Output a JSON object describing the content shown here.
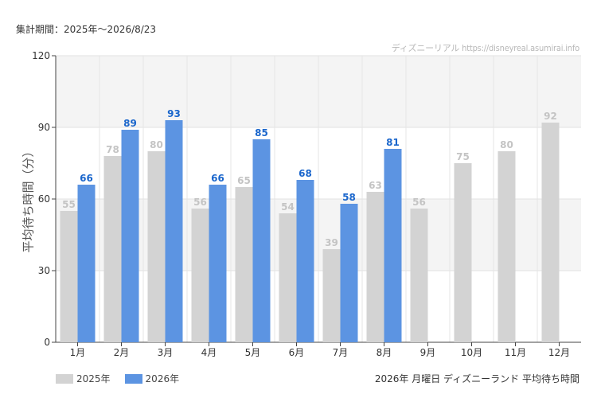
{
  "header": {
    "period": "集計期間：2025年～2026/8/23",
    "credit": "ディズニーリアル https://disneyreal.asumirai.info"
  },
  "footer": {
    "caption": "2026年 月曜日 ディズニーランド 平均待ち時間"
  },
  "colors": {
    "s2025": "#d3d3d3",
    "s2026": "#5c94e2",
    "label2025": "#c4c4c4",
    "label2026": "#1a66cc",
    "bandShaded": "#f4f4f4"
  },
  "chart_data": {
    "type": "bar",
    "title": "",
    "ylabel": "平均待ち時間（分）",
    "ylim": [
      0,
      120
    ],
    "yticks": [
      0,
      30,
      60,
      90,
      120
    ],
    "grid": true,
    "legend_position": "bottom-left",
    "categories": [
      "1月",
      "2月",
      "3月",
      "4月",
      "5月",
      "6月",
      "7月",
      "8月",
      "9月",
      "10月",
      "11月",
      "12月"
    ],
    "series": [
      {
        "name": "2025年",
        "values": [
          55,
          78,
          80,
          56,
          65,
          54,
          39,
          63,
          56,
          75,
          80,
          92
        ]
      },
      {
        "name": "2026年",
        "values": [
          66,
          89,
          93,
          66,
          85,
          68,
          58,
          81,
          null,
          null,
          null,
          null
        ]
      }
    ]
  }
}
